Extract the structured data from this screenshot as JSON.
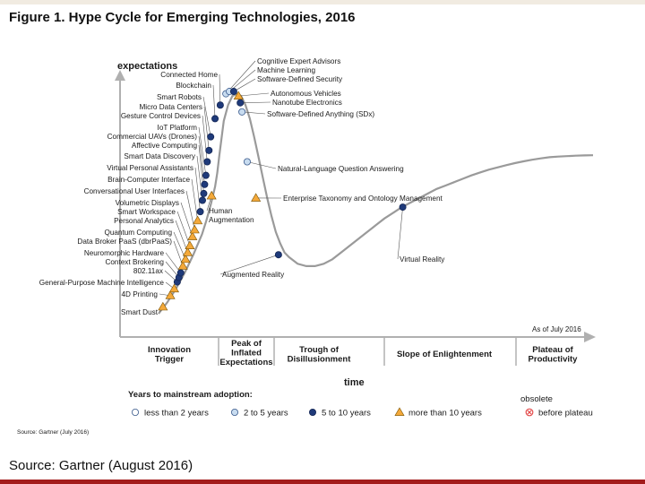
{
  "page": {
    "title": "Figure 1. Hype Cycle for Emerging Technologies, 2016",
    "caption": "Source: Gartner (August 2016)"
  },
  "chart_data": {
    "type": "line",
    "title": "Figure 1. Hype Cycle for Emerging Technologies, 2016",
    "xlabel": "time",
    "ylabel": "expectations",
    "grid": false,
    "as_of": "As of July 2016",
    "source_note": "Source: Gartner (July 2016)",
    "phases": [
      {
        "id": "innovation",
        "lines": [
          "Innovation",
          "Trigger"
        ]
      },
      {
        "id": "peak",
        "lines": [
          "Peak of",
          "Inflated",
          "Expectations"
        ]
      },
      {
        "id": "trough",
        "lines": [
          "Trough of",
          "Disillusionment"
        ]
      },
      {
        "id": "slope",
        "lines": [
          "Slope of Enlightenment"
        ]
      },
      {
        "id": "plateau",
        "lines": [
          "Plateau of",
          "Productivity"
        ]
      }
    ],
    "curve": {
      "x": [
        0,
        2,
        4,
        6,
        8,
        10,
        11,
        12,
        13,
        13.5,
        14,
        15,
        16,
        17,
        18,
        19,
        20,
        21,
        22,
        23,
        24,
        25,
        26,
        27,
        28,
        29,
        30,
        32,
        34,
        36,
        38,
        40,
        42,
        44,
        46,
        48,
        50,
        52,
        54,
        56,
        58,
        60,
        62,
        64,
        66,
        68,
        70,
        72,
        74,
        76,
        78,
        80,
        82,
        84,
        86,
        88,
        90,
        92,
        94,
        96,
        98,
        100
      ],
      "y": [
        0,
        5,
        11,
        18,
        26,
        35,
        41,
        48,
        56,
        62,
        70,
        85,
        92,
        96,
        97,
        96,
        92,
        86,
        78,
        69,
        60,
        51,
        43,
        36,
        31,
        27,
        25,
        22,
        21,
        21,
        22,
        24,
        27,
        30,
        33,
        36,
        39,
        42,
        44.5,
        47,
        49,
        51,
        53,
        55,
        56.5,
        58,
        59.5,
        61,
        62.3,
        63.5,
        64.5,
        65.5,
        66.4,
        67.2,
        67.9,
        68.5,
        69,
        69.3,
        69.5,
        69.7,
        69.8,
        69.9
      ]
    },
    "legend": {
      "title": "Years to mainstream adoption:",
      "entries": [
        {
          "category": "lt2",
          "label": "less than 2 years"
        },
        {
          "category": "2to5",
          "label": "2 to 5 years"
        },
        {
          "category": "5to10",
          "label": "5 to 10 years"
        },
        {
          "category": "gt10",
          "label": "more than 10 years"
        },
        {
          "category": "obsolete",
          "label": "before plateau",
          "header": "obsolete"
        }
      ]
    },
    "technologies": [
      {
        "name": "Smart Dust",
        "x": 1,
        "y": 3,
        "category": "gt10"
      },
      {
        "name": "4D Printing",
        "x": 2.7,
        "y": 8,
        "category": "gt10"
      },
      {
        "name": "General-Purpose Machine Intelligence",
        "x": 3.6,
        "y": 11,
        "category": "gt10"
      },
      {
        "name": "802.11ax",
        "x": 4.3,
        "y": 14,
        "category": "5to10"
      },
      {
        "name": "Context Brokering",
        "x": 4.7,
        "y": 16,
        "category": "5to10"
      },
      {
        "name": "Neuromorphic Hardware",
        "x": 5.1,
        "y": 18,
        "category": "5to10"
      },
      {
        "name": "Data Broker PaaS (dbrPaaS)",
        "x": 5.6,
        "y": 21,
        "category": "gt10"
      },
      {
        "name": "Quantum Computing",
        "x": 6.2,
        "y": 24,
        "category": "gt10"
      },
      {
        "name": "Personal Analytics",
        "x": 6.7,
        "y": 27,
        "category": "gt10"
      },
      {
        "name": "Smart Workspace",
        "x": 7.2,
        "y": 30,
        "category": "gt10"
      },
      {
        "name": "Volumetric Displays",
        "x": 7.8,
        "y": 34,
        "category": "gt10"
      },
      {
        "name": "Conversational User Interfaces",
        "x": 8.3,
        "y": 37,
        "category": "gt10"
      },
      {
        "name": "Brain-Computer Interface",
        "x": 9,
        "y": 41,
        "category": "gt10"
      },
      {
        "name": "Virtual Personal Assistants",
        "x": 9.6,
        "y": 45,
        "category": "5to10"
      },
      {
        "name": "Smart Data Discovery",
        "x": 10.1,
        "y": 50,
        "category": "5to10"
      },
      {
        "name": "Affective Computing",
        "x": 10.4,
        "y": 53,
        "category": "5to10"
      },
      {
        "name": "Commercial UAVs (Drones)",
        "x": 10.6,
        "y": 57,
        "category": "5to10"
      },
      {
        "name": "IoT Platform",
        "x": 10.9,
        "y": 61,
        "category": "5to10"
      },
      {
        "name": "Gesture Control Devices",
        "x": 11.2,
        "y": 67,
        "category": "5to10"
      },
      {
        "name": "Micro Data Centers",
        "x": 11.6,
        "y": 72,
        "category": "5to10"
      },
      {
        "name": "Smart Robots",
        "x": 12,
        "y": 78,
        "category": "5to10"
      },
      {
        "name": "Blockchain",
        "x": 13,
        "y": 86,
        "category": "5to10"
      },
      {
        "name": "Connected Home",
        "x": 14.2,
        "y": 92,
        "category": "5to10"
      },
      {
        "name": "Cognitive Expert Advisors",
        "x": 15.5,
        "y": 97,
        "category": "2to5"
      },
      {
        "name": "Machine Learning",
        "x": 16.3,
        "y": 98,
        "category": "2to5"
      },
      {
        "name": "Software-Defined Security",
        "x": 17.3,
        "y": 98,
        "category": "5to10"
      },
      {
        "name": "Autonomous Vehicles",
        "x": 18.4,
        "y": 96,
        "category": "gt10"
      },
      {
        "name": "Nanotube Electronics",
        "x": 18.8,
        "y": 93,
        "category": "5to10"
      },
      {
        "name": "Software-Defined Anything (SDx)",
        "x": 19.2,
        "y": 89,
        "category": "2to5"
      },
      {
        "name": "Human Augmentation",
        "x": 12.2,
        "y": 52,
        "category": "gt10"
      },
      {
        "name": "Natural-Language Question Answering",
        "x": 20.4,
        "y": 67,
        "category": "2to5"
      },
      {
        "name": "Enterprise Taxonomy and Ontology Management",
        "x": 22.4,
        "y": 51,
        "category": "gt10"
      },
      {
        "name": "Augmented Reality",
        "x": 27.6,
        "y": 26,
        "category": "5to10"
      },
      {
        "name": "Virtual Reality",
        "x": 56.2,
        "y": 47,
        "category": "5to10"
      }
    ],
    "colors": {
      "lt2": "#ffffff",
      "2to5": "#c8dcf0",
      "5to10": "#1f3a7a",
      "gt10": "#f4a93a",
      "obsolete": "#e34a4a",
      "curve": "#9a9a9a",
      "axis": "#b0b0b0"
    }
  }
}
